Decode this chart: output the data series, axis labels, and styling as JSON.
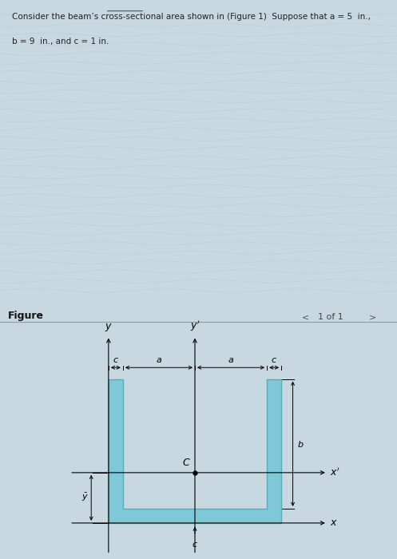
{
  "title_text": "Consider the beam’s cross-sectional area shown in (Figure 1)  Suppose that ",
  "title_text2": "a = 5  in.,",
  "title_text3": "b = 9  in., and c = 1 in.",
  "fig_label": "Figure",
  "page_label": "1 of 1",
  "top_bg_color": "#c8d8e0",
  "fig_bg_color": "#e8f0f4",
  "shape_fill_color": "#7ec8d8",
  "shape_edge_color": "#5aabb8",
  "text_color": "#222222",
  "a": 5,
  "b": 9,
  "c": 1,
  "fig_underline_color": "#aaaaaa",
  "wavy_color": "#b8ccd4"
}
